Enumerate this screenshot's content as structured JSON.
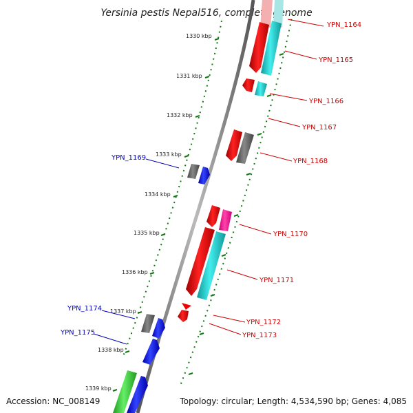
{
  "title": "Yersinia pestis Nepal516, complete genome",
  "accession": "Accession: NC_008149",
  "topology": "Topology: circular; Length: 4,534,590 bp; Genes: 4,085",
  "ticks": [
    "1330 kbp",
    "1331 kbp",
    "1332 kbp",
    "1333 kbp",
    "1334 kbp",
    "1335 kbp",
    "1336 kbp",
    "1337 kbp",
    "1338 kbp",
    "1339 kbp"
  ],
  "genes_right": [
    "YPN_1164",
    "YPN_1165",
    "YPN_1166",
    "YPN_1167",
    "YPN_1168",
    "YPN_1170",
    "YPN_1171",
    "YPN_1172",
    "YPN_1173"
  ],
  "genes_left": [
    "YPN_1169",
    "YPN_1174",
    "YPN_1175"
  ],
  "colors": {
    "red": "#ee0000",
    "cyan": "#22cccc",
    "gray": "#666666",
    "blue": "#1111ee",
    "magenta": "#ff2299",
    "green": "#33cc33",
    "tick_green": "#117711",
    "backbone": "#888888"
  }
}
